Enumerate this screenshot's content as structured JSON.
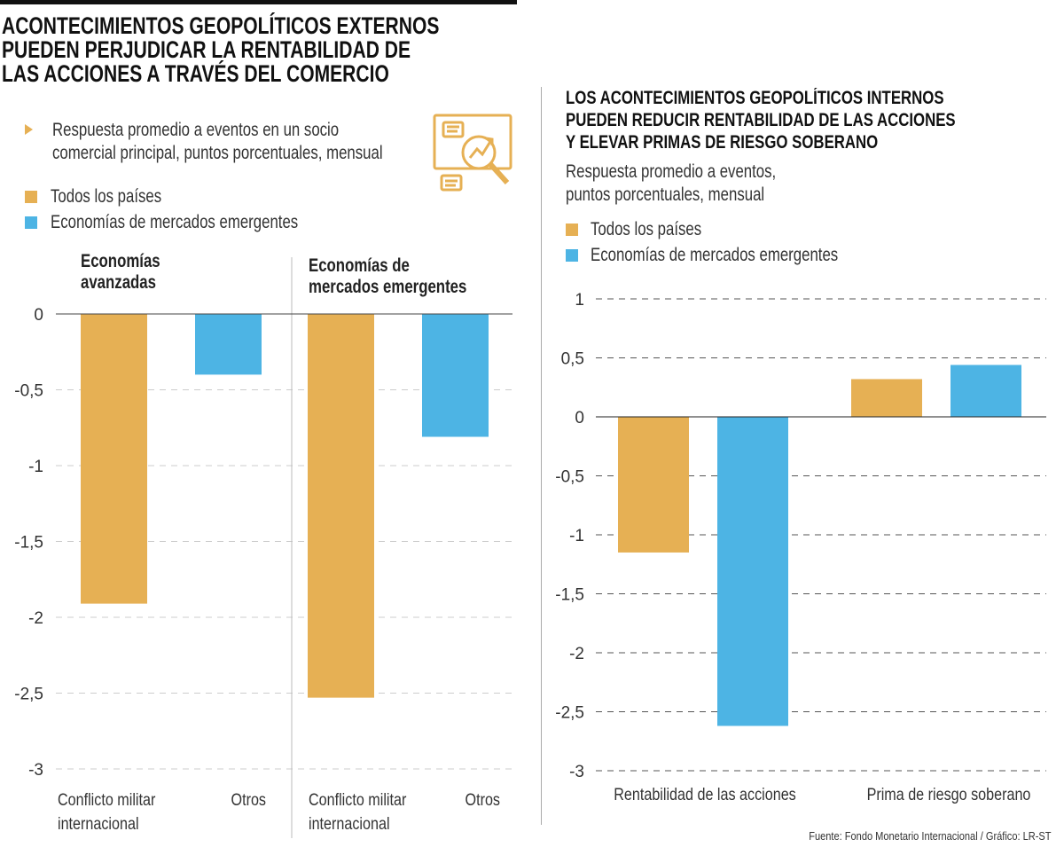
{
  "colors": {
    "todos": "#E6B054",
    "emergentes": "#4DB4E4",
    "accent": "#E6B054"
  },
  "left": {
    "title_lines": [
      "ACONTECIMIENTOS GEOPOLÍTICOS EXTERNOS",
      "PUEDEN PERJUDICAR LA RENTABILIDAD DE",
      "LAS ACCIONES A TRAVÉS DEL COMERCIO"
    ],
    "description_lines": [
      "Respuesta promedio a eventos en un socio",
      "comercial principal, puntos porcentuales, mensual"
    ],
    "icon": "analytics-magnifier-icon",
    "legend": [
      "Todos los países",
      "Economías de mercados emergentes"
    ],
    "panels": [
      {
        "title_lines": [
          "Economías",
          "avanzadas"
        ]
      },
      {
        "title_lines": [
          "Economías de",
          "mercados emergentes"
        ]
      }
    ]
  },
  "right": {
    "title_lines": [
      "LOS ACONTECIMIENTOS GEOPOLÍTICOS INTERNOS",
      "PUEDEN REDUCIR RENTABILIDAD DE LAS ACCIONES",
      "Y ELEVAR PRIMAS DE RIESGO SOBERANO"
    ],
    "description_lines": [
      "Respuesta promedio a eventos,",
      "puntos porcentuales, mensual"
    ],
    "legend": [
      "Todos los países",
      "Economías de mercados emergentes"
    ]
  },
  "source": "Fuente: Fondo Monetario Internacional / Gráfico: LR-ST",
  "chart_data": [
    {
      "type": "bar",
      "ylim": [
        -3,
        0
      ],
      "yticks": [
        "0",
        "-0,5",
        "-1",
        "-1,5",
        "-2",
        "-2,5",
        "-3"
      ],
      "ytick_values": [
        0,
        -0.5,
        -1,
        -1.5,
        -2,
        -2.5,
        -3
      ],
      "grid": true,
      "categories": [
        [
          "Conflicto militar",
          "internacional"
        ],
        [
          "Otros"
        ],
        [
          "Conflicto militar",
          "internacional"
        ],
        [
          "Otros"
        ]
      ],
      "panel_of_category": [
        "Economías avanzadas",
        "Economías avanzadas",
        "Economías de mercados emergentes",
        "Economías de mercados emergentes"
      ],
      "bars": [
        {
          "series": "Todos los países",
          "value": -1.91
        },
        {
          "series": "Economías de mercados emergentes",
          "value": -0.4
        },
        {
          "series": "Todos los países",
          "value": -2.53
        },
        {
          "series": "Economías de mercados emergentes",
          "value": -0.81
        }
      ]
    },
    {
      "type": "bar",
      "ylim": [
        -3,
        1
      ],
      "yticks": [
        "1",
        "0,5",
        "0",
        "-0,5",
        "-1",
        "-1,5",
        "-2",
        "-2,5",
        "-3"
      ],
      "ytick_values": [
        1,
        0.5,
        0,
        -0.5,
        -1,
        -1.5,
        -2,
        -2.5,
        -3
      ],
      "grid": true,
      "categories": [
        "Rentabilidad de las acciones",
        "Prima de riesgo soberano"
      ],
      "series": [
        {
          "name": "Todos los países",
          "values": [
            -1.15,
            0.32
          ]
        },
        {
          "name": "Economías de mercados emergentes",
          "values": [
            -2.62,
            0.44
          ]
        }
      ]
    }
  ]
}
